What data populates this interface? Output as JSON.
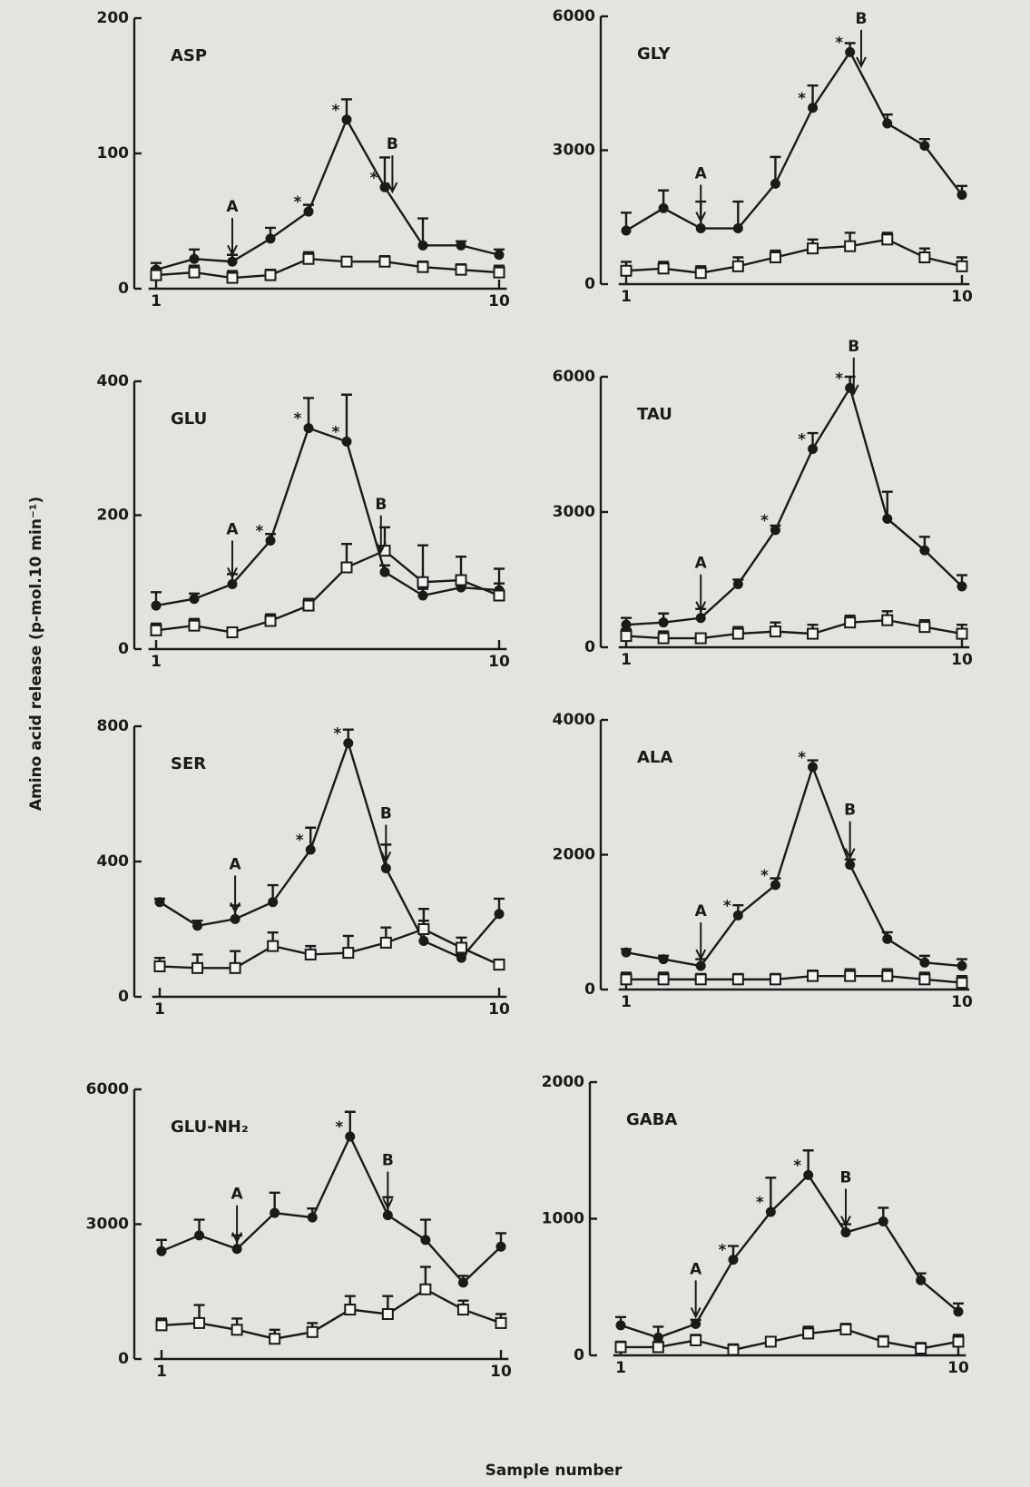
{
  "figure": {
    "y_label": "Amino acid release (p-mol.10 min⁻¹)",
    "x_label": "Sample number"
  },
  "chart_data": [
    {
      "type": "line",
      "title": "ASP",
      "x": [
        1,
        2,
        3,
        4,
        5,
        6,
        7,
        8,
        9,
        10
      ],
      "xlim": [
        0.8,
        10.2
      ],
      "xticks": [
        1,
        10
      ],
      "ylim": [
        0,
        200
      ],
      "yticks": [
        0,
        100,
        200
      ],
      "series": [
        {
          "marker": "circle",
          "color": "#1a1a1a",
          "values": [
            14,
            22,
            20,
            37,
            57,
            125,
            75,
            32,
            32,
            25
          ],
          "errors": [
            5,
            7,
            5,
            8,
            5,
            15,
            22,
            20,
            3,
            4
          ]
        },
        {
          "marker": "square",
          "color": "#1a1a1a",
          "values": [
            10,
            12,
            8,
            10,
            22,
            20,
            20,
            16,
            14,
            12
          ],
          "errors": [
            5,
            5,
            5,
            4,
            5,
            3,
            4,
            4,
            4,
            5
          ]
        }
      ],
      "annotations": [
        {
          "label": "A",
          "x": 3
        },
        {
          "label": "B",
          "x": 7.2
        }
      ],
      "star": "*",
      "starred_x": [
        5,
        6,
        7
      ]
    },
    {
      "type": "line",
      "title": "GLY",
      "x": [
        1,
        2,
        3,
        4,
        5,
        6,
        7,
        8,
        9,
        10
      ],
      "xlim": [
        0.8,
        10.2
      ],
      "xticks": [
        1,
        10
      ],
      "ylim": [
        0,
        6000
      ],
      "yticks": [
        0,
        3000,
        6000
      ],
      "series": [
        {
          "marker": "circle",
          "color": "#1a1a1a",
          "values": [
            1200,
            1700,
            1250,
            1250,
            2250,
            3950,
            5200,
            3600,
            3100,
            2000
          ],
          "errors": [
            400,
            400,
            600,
            600,
            600,
            500,
            200,
            200,
            150,
            200
          ]
        },
        {
          "marker": "square",
          "color": "#1a1a1a",
          "values": [
            300,
            350,
            250,
            400,
            600,
            800,
            850,
            1000,
            600,
            400
          ],
          "errors": [
            200,
            150,
            150,
            200,
            150,
            200,
            300,
            150,
            200,
            200
          ]
        }
      ],
      "annotations": [
        {
          "label": "A",
          "x": 3
        },
        {
          "label": "B",
          "x": 7.3
        }
      ],
      "star": "*",
      "starred_x": [
        6,
        7
      ]
    },
    {
      "type": "line",
      "title": "GLU",
      "x": [
        1,
        2,
        3,
        4,
        5,
        6,
        7,
        8,
        9,
        10
      ],
      "xlim": [
        0.8,
        10.2
      ],
      "xticks": [
        1,
        10
      ],
      "ylim": [
        0,
        400
      ],
      "yticks": [
        0,
        200,
        400
      ],
      "series": [
        {
          "marker": "circle",
          "color": "#1a1a1a",
          "values": [
            65,
            75,
            97,
            162,
            330,
            310,
            115,
            80,
            92,
            88
          ],
          "errors": [
            20,
            8,
            15,
            10,
            45,
            70,
            10,
            10,
            10,
            10
          ]
        },
        {
          "marker": "square",
          "color": "#1a1a1a",
          "values": [
            28,
            35,
            25,
            42,
            65,
            122,
            147,
            100,
            103,
            80
          ],
          "errors": [
            10,
            10,
            5,
            10,
            10,
            35,
            35,
            55,
            35,
            40
          ]
        }
      ],
      "annotations": [
        {
          "label": "A",
          "x": 3
        },
        {
          "label": "B",
          "x": 6.9
        }
      ],
      "star": "*",
      "starred_x": [
        4,
        5,
        6
      ]
    },
    {
      "type": "line",
      "title": "TAU",
      "x": [
        1,
        2,
        3,
        4,
        5,
        6,
        7,
        8,
        9,
        10
      ],
      "xlim": [
        0.8,
        10.2
      ],
      "xticks": [
        1,
        10
      ],
      "ylim": [
        0,
        6000
      ],
      "yticks": [
        0,
        3000,
        6000
      ],
      "series": [
        {
          "marker": "circle",
          "color": "#1a1a1a",
          "values": [
            500,
            550,
            650,
            1400,
            2600,
            4400,
            5750,
            2850,
            2150,
            1350
          ],
          "errors": [
            150,
            200,
            200,
            100,
            100,
            350,
            250,
            600,
            300,
            250
          ]
        },
        {
          "marker": "square",
          "color": "#1a1a1a",
          "values": [
            250,
            200,
            200,
            300,
            350,
            300,
            550,
            600,
            450,
            300
          ],
          "errors": [
            150,
            150,
            100,
            150,
            200,
            200,
            150,
            200,
            150,
            200
          ]
        }
      ],
      "annotations": [
        {
          "label": "A",
          "x": 3
        },
        {
          "label": "B",
          "x": 7.1
        }
      ],
      "star": "*",
      "starred_x": [
        5,
        6,
        7
      ]
    },
    {
      "type": "line",
      "title": "SER",
      "x": [
        1,
        2,
        3,
        4,
        5,
        6,
        7,
        8,
        9,
        10
      ],
      "xlim": [
        0.8,
        10.2
      ],
      "xticks": [
        1,
        10
      ],
      "ylim": [
        0,
        800
      ],
      "yticks": [
        0,
        400,
        800
      ],
      "series": [
        {
          "marker": "circle",
          "color": "#1a1a1a",
          "values": [
            280,
            210,
            230,
            280,
            435,
            750,
            380,
            165,
            115,
            245
          ],
          "errors": [
            10,
            15,
            40,
            50,
            65,
            40,
            70,
            60,
            10,
            45
          ]
        },
        {
          "marker": "square",
          "color": "#1a1a1a",
          "values": [
            90,
            85,
            85,
            150,
            125,
            130,
            160,
            200,
            145,
            95
          ],
          "errors": [
            25,
            40,
            50,
            40,
            25,
            50,
            45,
            60,
            30,
            15
          ]
        }
      ],
      "annotations": [
        {
          "label": "A",
          "x": 3
        },
        {
          "label": "B",
          "x": 7
        }
      ],
      "star": "*",
      "starred_x": [
        5,
        6
      ]
    },
    {
      "type": "line",
      "title": "ALA",
      "x": [
        1,
        2,
        3,
        4,
        5,
        6,
        7,
        8,
        9,
        10
      ],
      "xlim": [
        0.8,
        10.2
      ],
      "xticks": [
        1,
        10
      ],
      "ylim": [
        0,
        4000
      ],
      "yticks": [
        0,
        2000,
        4000
      ],
      "series": [
        {
          "marker": "circle",
          "color": "#1a1a1a",
          "values": [
            550,
            450,
            350,
            1100,
            1550,
            3300,
            1850,
            750,
            400,
            350
          ],
          "errors": [
            50,
            50,
            100,
            150,
            100,
            100,
            80,
            100,
            100,
            100
          ]
        },
        {
          "marker": "square",
          "color": "#1a1a1a",
          "values": [
            150,
            150,
            150,
            150,
            150,
            200,
            200,
            200,
            150,
            100
          ],
          "errors": [
            100,
            100,
            80,
            80,
            80,
            80,
            100,
            100,
            100,
            100
          ]
        }
      ],
      "annotations": [
        {
          "label": "A",
          "x": 3
        },
        {
          "label": "B",
          "x": 7
        }
      ],
      "star": "*",
      "starred_x": [
        4,
        5,
        6
      ]
    },
    {
      "type": "line",
      "title": "GLU-NH₂",
      "x": [
        1,
        2,
        3,
        4,
        5,
        6,
        7,
        8,
        9,
        10
      ],
      "xlim": [
        0.8,
        10.2
      ],
      "xticks": [
        1,
        10
      ],
      "ylim": [
        0,
        6000
      ],
      "yticks": [
        0,
        3000,
        6000
      ],
      "series": [
        {
          "marker": "circle",
          "color": "#1a1a1a",
          "values": [
            2400,
            2750,
            2450,
            3250,
            3150,
            4950,
            3200,
            2650,
            1700,
            2500
          ],
          "errors": [
            250,
            350,
            300,
            450,
            200,
            550,
            400,
            450,
            150,
            300
          ]
        },
        {
          "marker": "square",
          "color": "#1a1a1a",
          "values": [
            750,
            800,
            650,
            450,
            600,
            1100,
            1000,
            1550,
            1100,
            800
          ],
          "errors": [
            150,
            400,
            250,
            200,
            200,
            300,
            400,
            500,
            200,
            200
          ]
        }
      ],
      "annotations": [
        {
          "label": "A",
          "x": 3
        },
        {
          "label": "B",
          "x": 7
        }
      ],
      "star": "*",
      "starred_x": [
        6
      ]
    },
    {
      "type": "line",
      "title": "GABA",
      "x": [
        1,
        2,
        3,
        4,
        5,
        6,
        7,
        8,
        9,
        10
      ],
      "xlim": [
        0.8,
        10.2
      ],
      "xticks": [
        1,
        10
      ],
      "ylim": [
        0,
        2000
      ],
      "yticks": [
        0,
        1000,
        2000
      ],
      "series": [
        {
          "marker": "circle",
          "color": "#1a1a1a",
          "values": [
            220,
            130,
            230,
            700,
            1050,
            1320,
            900,
            980,
            550,
            320
          ],
          "errors": [
            60,
            80,
            30,
            100,
            250,
            180,
            60,
            100,
            50,
            60
          ]
        },
        {
          "marker": "square",
          "color": "#1a1a1a",
          "values": [
            60,
            60,
            110,
            40,
            100,
            160,
            190,
            100,
            50,
            100
          ],
          "errors": [
            40,
            40,
            40,
            40,
            30,
            50,
            40,
            40,
            40,
            50
          ]
        }
      ],
      "annotations": [
        {
          "label": "A",
          "x": 3
        },
        {
          "label": "B",
          "x": 7
        }
      ],
      "star": "*",
      "starred_x": [
        4,
        5,
        6
      ]
    }
  ]
}
